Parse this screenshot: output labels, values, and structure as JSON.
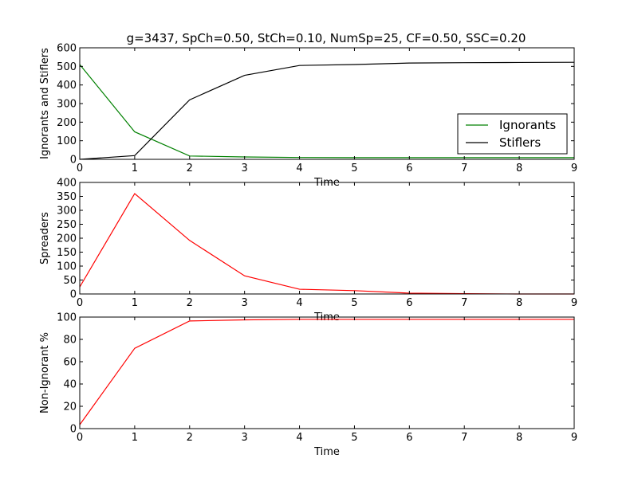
{
  "title": "g=3437, SpCh=0.50, StCh=0.10, NumSp=25, CF=0.50, SSC=0.20",
  "chart_data": [
    {
      "type": "line",
      "title": "g=3437, SpCh=0.50, StCh=0.10, NumSp=25, CF=0.50, SSC=0.20",
      "xlabel": "Time",
      "ylabel": "Ignorants and Stiflers",
      "x": [
        0,
        1,
        2,
        3,
        4,
        5,
        6,
        7,
        8,
        9
      ],
      "xlim": [
        0,
        9
      ],
      "ylim": [
        0,
        600
      ],
      "xticks": [
        0,
        1,
        2,
        3,
        4,
        5,
        6,
        7,
        8,
        9
      ],
      "yticks": [
        0,
        100,
        200,
        300,
        400,
        500,
        600
      ],
      "grid": false,
      "legend": "center-right",
      "series": [
        {
          "name": "Ignorants",
          "color": "#008000",
          "values": [
            510,
            148,
            18,
            13,
            10,
            9,
            9,
            9,
            9,
            9
          ]
        },
        {
          "name": "Stiflers",
          "color": "#000000",
          "values": [
            0,
            20,
            320,
            452,
            505,
            510,
            518,
            520,
            521,
            522
          ]
        }
      ]
    },
    {
      "type": "line",
      "xlabel": "Time",
      "ylabel": "Spreaders",
      "x": [
        0,
        1,
        2,
        3,
        4,
        5,
        6,
        7,
        8,
        9
      ],
      "xlim": [
        0,
        9
      ],
      "ylim": [
        0,
        400
      ],
      "xticks": [
        0,
        1,
        2,
        3,
        4,
        5,
        6,
        7,
        8,
        9
      ],
      "yticks": [
        0,
        50,
        100,
        150,
        200,
        250,
        300,
        350,
        400
      ],
      "grid": false,
      "series": [
        {
          "color": "#ff0000",
          "values": [
            25,
            360,
            192,
            65,
            17,
            12,
            3,
            1,
            0,
            0
          ]
        }
      ]
    },
    {
      "type": "line",
      "xlabel": "Time",
      "ylabel": "Non-Ignorant %",
      "x": [
        0,
        1,
        2,
        3,
        4,
        5,
        6,
        7,
        8,
        9
      ],
      "xlim": [
        0,
        9
      ],
      "ylim": [
        0,
        100
      ],
      "xticks": [
        0,
        1,
        2,
        3,
        4,
        5,
        6,
        7,
        8,
        9
      ],
      "yticks": [
        0,
        20,
        40,
        60,
        80,
        100
      ],
      "grid": false,
      "series": [
        {
          "color": "#ff0000",
          "values": [
            3.5,
            72,
            96.5,
            97.5,
            98,
            98,
            98,
            98,
            98,
            98
          ]
        }
      ]
    }
  ]
}
